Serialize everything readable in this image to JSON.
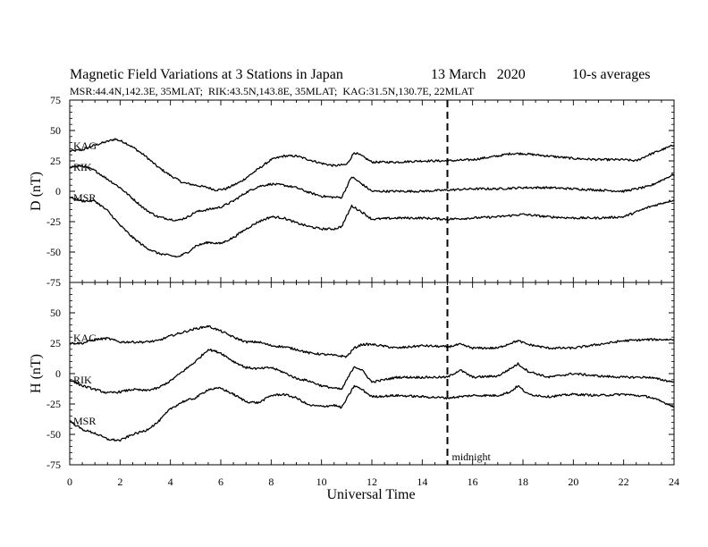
{
  "chart_data": {
    "type": "line",
    "title": "Magnetic Field Variations at 3 Stations in Japan",
    "date": "13 March   2020",
    "averaging": "10-s averages",
    "subtitle": "MSR:44.4N,142.3E, 35MLAT;  RIK:43.5N,143.8E, 35MLAT;  KAG:31.5N,130.7E, 22MLAT",
    "xlabel": "Universal Time",
    "xlim": [
      0,
      24
    ],
    "xticks": [
      "0",
      "2",
      "4",
      "6",
      "8",
      "10",
      "12",
      "14",
      "16",
      "18",
      "20",
      "22",
      "24"
    ],
    "marker": {
      "x": 15,
      "label": "midnight"
    },
    "panels": [
      {
        "ylabel": "D (nT)",
        "ylim": [
          -75,
          75
        ],
        "yticks": [
          "75",
          "50",
          "25",
          "0",
          "-25",
          "-50",
          "-75"
        ],
        "series": [
          {
            "name": "KAG",
            "x": [
              0,
              0.5,
              1,
              1.5,
              1.8,
              2.2,
              2.6,
              3,
              3.5,
              4,
              4.5,
              5,
              5.5,
              5.8,
              6.2,
              6.8,
              7.2,
              7.6,
              8,
              8.5,
              9,
              9.5,
              10,
              10.5,
              11,
              11.3,
              11.6,
              12,
              13,
              14,
              15,
              16,
              17,
              17.5,
              18,
              19,
              20,
              21,
              22,
              22.5,
              23,
              23.5,
              24
            ],
            "values": [
              33,
              34,
              38,
              41,
              43,
              40,
              35,
              29,
              20,
              13,
              7,
              5,
              3,
              1,
              2,
              8,
              14,
              20,
              26,
              29,
              29,
              26,
              23,
              21,
              22,
              32,
              29,
              24,
              24,
              25,
              25,
              26,
              29,
              31,
              31,
              29,
              27,
              26,
              26,
              25,
              30,
              34,
              38
            ]
          },
          {
            "name": "RIK",
            "x": [
              0,
              0.5,
              1,
              1.5,
              2,
              2.5,
              3,
              3.5,
              4,
              4.3,
              4.7,
              5,
              5.5,
              6,
              6.5,
              7,
              7.5,
              8,
              8.5,
              9,
              9.5,
              10,
              10.5,
              10.8,
              11.2,
              11.6,
              12,
              13,
              14,
              15,
              16,
              17,
              18,
              19,
              20,
              21,
              22,
              23,
              24
            ],
            "values": [
              20,
              21,
              17,
              10,
              3,
              -6,
              -15,
              -21,
              -23,
              -24,
              -21,
              -17,
              -15,
              -13,
              -8,
              -1,
              4,
              6,
              5,
              3,
              -1,
              -4,
              -5,
              -5,
              12,
              6,
              0,
              0,
              0,
              1,
              2,
              2,
              3,
              3,
              2,
              1,
              0,
              4,
              14
            ]
          },
          {
            "name": "MSR",
            "x": [
              0,
              0.5,
              1,
              1.5,
              2,
              2.5,
              3,
              3.5,
              4,
              4.3,
              4.7,
              5,
              5.5,
              6,
              6.5,
              7,
              7.5,
              8,
              8.5,
              9,
              9.5,
              10,
              10.5,
              10.8,
              11.2,
              11.6,
              12,
              13,
              14,
              15,
              16,
              17,
              18,
              19,
              20,
              21,
              22,
              23,
              24
            ],
            "values": [
              -5,
              -8,
              -8,
              -16,
              -28,
              -38,
              -46,
              -51,
              -53,
              -54,
              -50,
              -45,
              -42,
              -43,
              -38,
              -31,
              -25,
              -21,
              -22,
              -26,
              -29,
              -31,
              -31,
              -29,
              -12,
              -17,
              -23,
              -22,
              -22,
              -23,
              -22,
              -21,
              -19,
              -21,
              -22,
              -22,
              -21,
              -13,
              -7
            ]
          }
        ]
      },
      {
        "ylabel": "H (nT)",
        "ylim": [
          -75,
          75
        ],
        "yticks": [
          "50",
          "25",
          "0",
          "-25",
          "-50",
          "-75"
        ],
        "series": [
          {
            "name": "KAG",
            "x": [
              0,
              0.5,
              1,
              1.5,
              2,
              2.5,
              3,
              3.5,
              4,
              4.5,
              5,
              5.5,
              6,
              6.5,
              7,
              7.5,
              8,
              8.5,
              9,
              9.5,
              10,
              10.5,
              11,
              11.3,
              11.6,
              12,
              13,
              14,
              15,
              15.5,
              16,
              17,
              17.5,
              17.8,
              18.2,
              19,
              20,
              21,
              22,
              23,
              24
            ],
            "values": [
              25,
              25,
              28,
              29,
              26,
              26,
              26,
              27,
              31,
              34,
              37,
              39,
              35,
              30,
              26,
              26,
              23,
              22,
              20,
              17,
              16,
              15,
              14,
              21,
              24,
              24,
              21,
              23,
              22,
              24,
              21,
              21,
              25,
              27,
              24,
              21,
              21,
              24,
              27,
              28,
              28
            ]
          },
          {
            "name": "RIK",
            "x": [
              0,
              0.5,
              1,
              1.5,
              2,
              2.5,
              3,
              3.5,
              4,
              4.5,
              5,
              5.5,
              6,
              6.5,
              7,
              7.5,
              8,
              8.5,
              9,
              9.5,
              10,
              10.5,
              10.8,
              11.3,
              11.6,
              12,
              13,
              14,
              15,
              15.5,
              16,
              17,
              17.5,
              17.8,
              18.2,
              19,
              20,
              21,
              22,
              23,
              24
            ],
            "values": [
              -5,
              -10,
              -13,
              -16,
              -15,
              -13,
              -14,
              -12,
              -6,
              2,
              10,
              20,
              17,
              10,
              5,
              4,
              5,
              1,
              -4,
              -6,
              -10,
              -12,
              -13,
              6,
              3,
              -7,
              -3,
              -3,
              -3,
              3,
              -3,
              -2,
              4,
              8,
              2,
              -3,
              0,
              -2,
              -3,
              -3,
              -7
            ]
          },
          {
            "name": "MSR",
            "x": [
              0,
              0.5,
              1,
              1.5,
              2,
              2.5,
              3,
              3.5,
              4,
              4.5,
              5,
              5.5,
              6,
              6.5,
              7,
              7.5,
              8,
              8.5,
              9,
              9.5,
              10,
              10.5,
              10.8,
              11.3,
              11.6,
              12,
              13,
              14,
              15,
              16,
              17,
              17.5,
              17.8,
              18.2,
              19,
              20,
              21,
              22,
              23,
              24
            ],
            "values": [
              -39,
              -46,
              -49,
              -54,
              -55,
              -50,
              -47,
              -40,
              -29,
              -23,
              -20,
              -13,
              -12,
              -17,
              -23,
              -24,
              -18,
              -17,
              -20,
              -26,
              -27,
              -26,
              -28,
              -10,
              -13,
              -19,
              -18,
              -19,
              -20,
              -18,
              -18,
              -15,
              -10,
              -17,
              -19,
              -17,
              -18,
              -17,
              -19,
              -27
            ]
          }
        ]
      }
    ]
  }
}
